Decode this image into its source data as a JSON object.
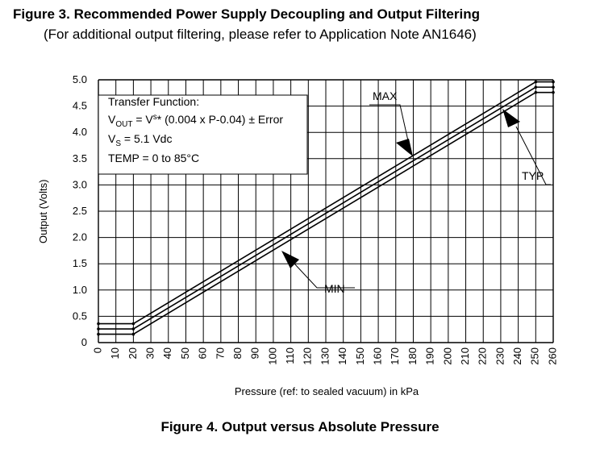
{
  "figure3": {
    "title": "Figure 3. Recommended Power Supply Decoupling and Output Filtering",
    "subtitle": "(For additional output filtering, please refer to Application Note AN1646)"
  },
  "figure4_caption": "Figure 4. Output versus Absolute Pressure",
  "transfer_box": {
    "heading": "Transfer Function:",
    "eq_v": "V",
    "eq_out": "OUT",
    "eq_eq": " = V",
    "eq_s": "s",
    "eq_rest": "* (0.004 x P-0.04) ± Error",
    "vs_v": "V",
    "vs_s": "S",
    "vs_rest": " = 5.1 Vdc",
    "temp": "TEMP = 0 to 85°C"
  },
  "chart_data": {
    "type": "line",
    "title": "",
    "xlabel": "Pressure (ref: to sealed vacuum) in kPa",
    "ylabel": "Output (Volts)",
    "xlim": [
      0,
      260
    ],
    "ylim": [
      0,
      5.0
    ],
    "x_ticks": [
      "0",
      "10",
      "20",
      "30",
      "40",
      "50",
      "60",
      "70",
      "80",
      "90",
      "100",
      "110",
      "120",
      "130",
      "140",
      "150",
      "160",
      "170",
      "180",
      "190",
      "200",
      "210",
      "220",
      "230",
      "240",
      "250",
      "260"
    ],
    "y_ticks": [
      "0",
      "0.5",
      "1.0",
      "1.5",
      "2.0",
      "2.5",
      "3.0",
      "3.5",
      "4.0",
      "4.5",
      "5.0"
    ],
    "grid": true,
    "series": [
      {
        "name": "MAX",
        "x": [
          0,
          20,
          250,
          260
        ],
        "y": [
          0.36,
          0.36,
          4.96,
          4.96
        ]
      },
      {
        "name": "TYP",
        "x": [
          0,
          20,
          250,
          260
        ],
        "y": [
          0.26,
          0.26,
          4.86,
          4.86
        ]
      },
      {
        "name": "MIN",
        "x": [
          0,
          20,
          250,
          260
        ],
        "y": [
          0.16,
          0.16,
          4.76,
          4.76
        ]
      }
    ],
    "annotations": [
      "MAX",
      "TYP",
      "MIN"
    ]
  },
  "colors": {
    "line": "#000000",
    "background": "#ffffff"
  }
}
